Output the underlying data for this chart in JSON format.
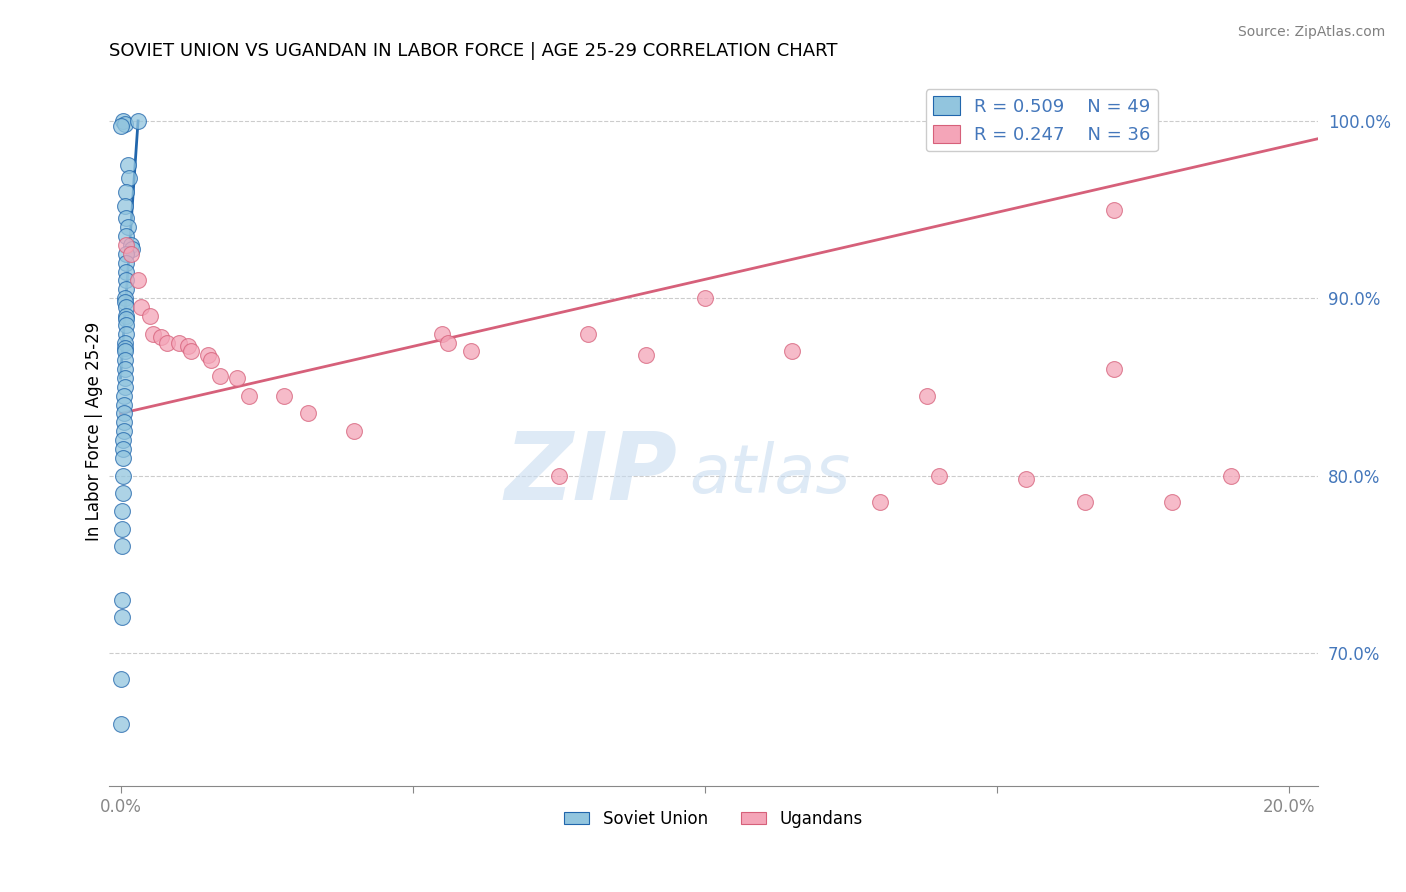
{
  "title": "SOVIET UNION VS UGANDAN IN LABOR FORCE | AGE 25-29 CORRELATION CHART",
  "source_text": "Source: ZipAtlas.com",
  "ylabel": "In Labor Force | Age 25-29",
  "xlim": [
    -0.002,
    0.205
  ],
  "ylim": [
    0.625,
    1.025
  ],
  "x_ticks": [
    0.0,
    0.05,
    0.1,
    0.15,
    0.2
  ],
  "x_tick_labels": [
    "0.0%",
    "",
    "",
    "",
    "20.0%"
  ],
  "y_ticks": [
    0.7,
    0.8,
    0.9,
    1.0
  ],
  "y_tick_labels": [
    "70.0%",
    "80.0%",
    "90.0%",
    "100.0%"
  ],
  "blue_R": 0.509,
  "blue_N": 49,
  "pink_R": 0.247,
  "pink_N": 36,
  "blue_color": "#92C5DE",
  "pink_color": "#F4A5B8",
  "blue_line_color": "#2166AC",
  "pink_line_color": "#D6607A",
  "legend_label_blue": "Soviet Union",
  "legend_label_pink": "Ugandans",
  "blue_x": [
    0.0005,
    0.0008,
    0.003,
    0.0,
    0.0012,
    0.0015,
    0.001,
    0.0008,
    0.001,
    0.0012,
    0.001,
    0.0018,
    0.002,
    0.001,
    0.001,
    0.001,
    0.001,
    0.001,
    0.0008,
    0.0008,
    0.001,
    0.001,
    0.001,
    0.001,
    0.001,
    0.0008,
    0.0008,
    0.0008,
    0.0008,
    0.0008,
    0.0008,
    0.0008,
    0.0006,
    0.0006,
    0.0006,
    0.0006,
    0.0006,
    0.0004,
    0.0004,
    0.0004,
    0.0004,
    0.0004,
    0.0002,
    0.0002,
    0.0002,
    0.0002,
    0.0002,
    0.0001,
    0.0001
  ],
  "blue_y": [
    1.0,
    0.998,
    1.0,
    0.997,
    0.975,
    0.968,
    0.96,
    0.952,
    0.945,
    0.94,
    0.935,
    0.93,
    0.928,
    0.925,
    0.92,
    0.915,
    0.91,
    0.905,
    0.9,
    0.898,
    0.895,
    0.89,
    0.888,
    0.885,
    0.88,
    0.875,
    0.872,
    0.87,
    0.865,
    0.86,
    0.855,
    0.85,
    0.845,
    0.84,
    0.835,
    0.83,
    0.825,
    0.82,
    0.815,
    0.81,
    0.8,
    0.79,
    0.78,
    0.77,
    0.76,
    0.73,
    0.72,
    0.685,
    0.66
  ],
  "pink_x": [
    0.001,
    0.0018,
    0.003,
    0.0035,
    0.005,
    0.0055,
    0.007,
    0.008,
    0.01,
    0.0115,
    0.012,
    0.015,
    0.0155,
    0.017,
    0.02,
    0.022,
    0.028,
    0.032,
    0.04,
    0.055,
    0.056,
    0.06,
    0.075,
    0.08,
    0.09,
    0.1,
    0.115,
    0.13,
    0.138,
    0.14,
    0.155,
    0.165,
    0.17,
    0.18,
    0.19,
    0.17
  ],
  "pink_y": [
    0.93,
    0.925,
    0.91,
    0.895,
    0.89,
    0.88,
    0.878,
    0.875,
    0.875,
    0.873,
    0.87,
    0.868,
    0.865,
    0.856,
    0.855,
    0.845,
    0.845,
    0.835,
    0.825,
    0.88,
    0.875,
    0.87,
    0.8,
    0.88,
    0.868,
    0.9,
    0.87,
    0.785,
    0.845,
    0.8,
    0.798,
    0.785,
    0.86,
    0.785,
    0.8,
    0.95
  ],
  "blue_trend_x": [
    0.0,
    0.003
  ],
  "blue_trend_y": [
    0.855,
    1.0
  ],
  "pink_trend_x": [
    0.0,
    0.205
  ],
  "pink_trend_y": [
    0.835,
    0.99
  ],
  "background_color": "#FFFFFF",
  "grid_color": "#CCCCCC",
  "watermark_zip": "ZIP",
  "watermark_atlas": "atlas",
  "title_fontsize": 13,
  "axis_color": "#4477BB"
}
